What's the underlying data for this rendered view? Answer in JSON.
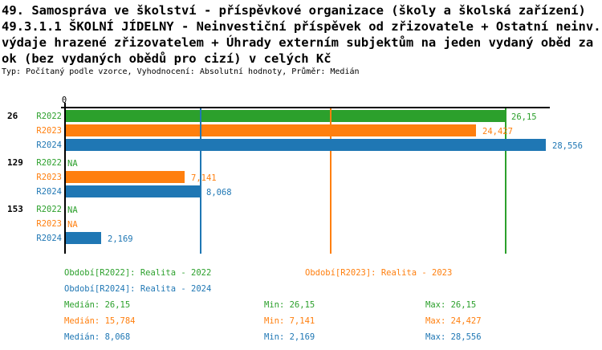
{
  "header": {
    "line1": "49. Samospráva ve školství - příspěvkové organizace (školy a školská zařízení)",
    "line2": "49.3.1.1 ŠKOLNÍ JÍDELNY - Neinvestiční příspěvek od zřizovatele + Ostatní neinv.",
    "line3": "výdaje hrazené zřizovatelem + Úhrady externím subjektům na jeden vydaný oběd za r",
    "line4": "ok (bez vydaných obědů pro cizí) v celých Kč",
    "meta": "Typ: Počítaný podle vzorce, Vyhodnocení: Absolutní hodnoty, Průměr: Medián"
  },
  "chart_data": {
    "type": "bar",
    "orientation": "horizontal",
    "unit": "Kč",
    "axis_origin_label": "0",
    "xlim": [
      0,
      28.8
    ],
    "series_labels": [
      "R2022",
      "R2023",
      "R2024"
    ],
    "colors": {
      "R2022": "#2ca02c",
      "R2023": "#ff7f0e",
      "R2024": "#1f77b4",
      "axis": "#000000"
    },
    "groups": [
      {
        "id": "26",
        "bars": [
          {
            "series": "R2022",
            "value": 26.15,
            "label": "26,15"
          },
          {
            "series": "R2023",
            "value": 24.427,
            "label": "24,427"
          },
          {
            "series": "R2024",
            "value": 28.556,
            "label": "28,556"
          }
        ]
      },
      {
        "id": "129",
        "bars": [
          {
            "series": "R2022",
            "value": null,
            "label": "NA"
          },
          {
            "series": "R2023",
            "value": 7.141,
            "label": "7,141"
          },
          {
            "series": "R2024",
            "value": 8.068,
            "label": "8,068"
          }
        ]
      },
      {
        "id": "153",
        "bars": [
          {
            "series": "R2022",
            "value": null,
            "label": "NA"
          },
          {
            "series": "R2023",
            "value": null,
            "label": "NA"
          },
          {
            "series": "R2024",
            "value": 2.169,
            "label": "2,169"
          }
        ]
      }
    ],
    "median_lines": [
      {
        "series": "R2022",
        "value": 26.15
      },
      {
        "series": "R2023",
        "value": 15.784
      },
      {
        "series": "R2024",
        "value": 8.068
      }
    ]
  },
  "legend": {
    "periods": [
      {
        "series": "R2022",
        "text": "Období[R2022]: Realita - 2022",
        "col": 0,
        "row": 0
      },
      {
        "series": "R2023",
        "text": "Období[R2023]: Realita - 2023",
        "col": 1,
        "row": 0
      },
      {
        "series": "R2024",
        "text": "Období[R2024]: Realita - 2024",
        "col": 0,
        "row": 1
      }
    ],
    "stats": [
      {
        "series": "R2022",
        "median": "Medián: 26,15",
        "min": "Min: 26,15",
        "max": "Max: 26,15"
      },
      {
        "series": "R2023",
        "median": "Medián: 15,784",
        "min": "Min: 7,141",
        "max": "Max: 24,427"
      },
      {
        "series": "R2024",
        "median": "Medián: 8,068",
        "min": "Min: 2,169",
        "max": "Max: 28,556"
      }
    ]
  }
}
